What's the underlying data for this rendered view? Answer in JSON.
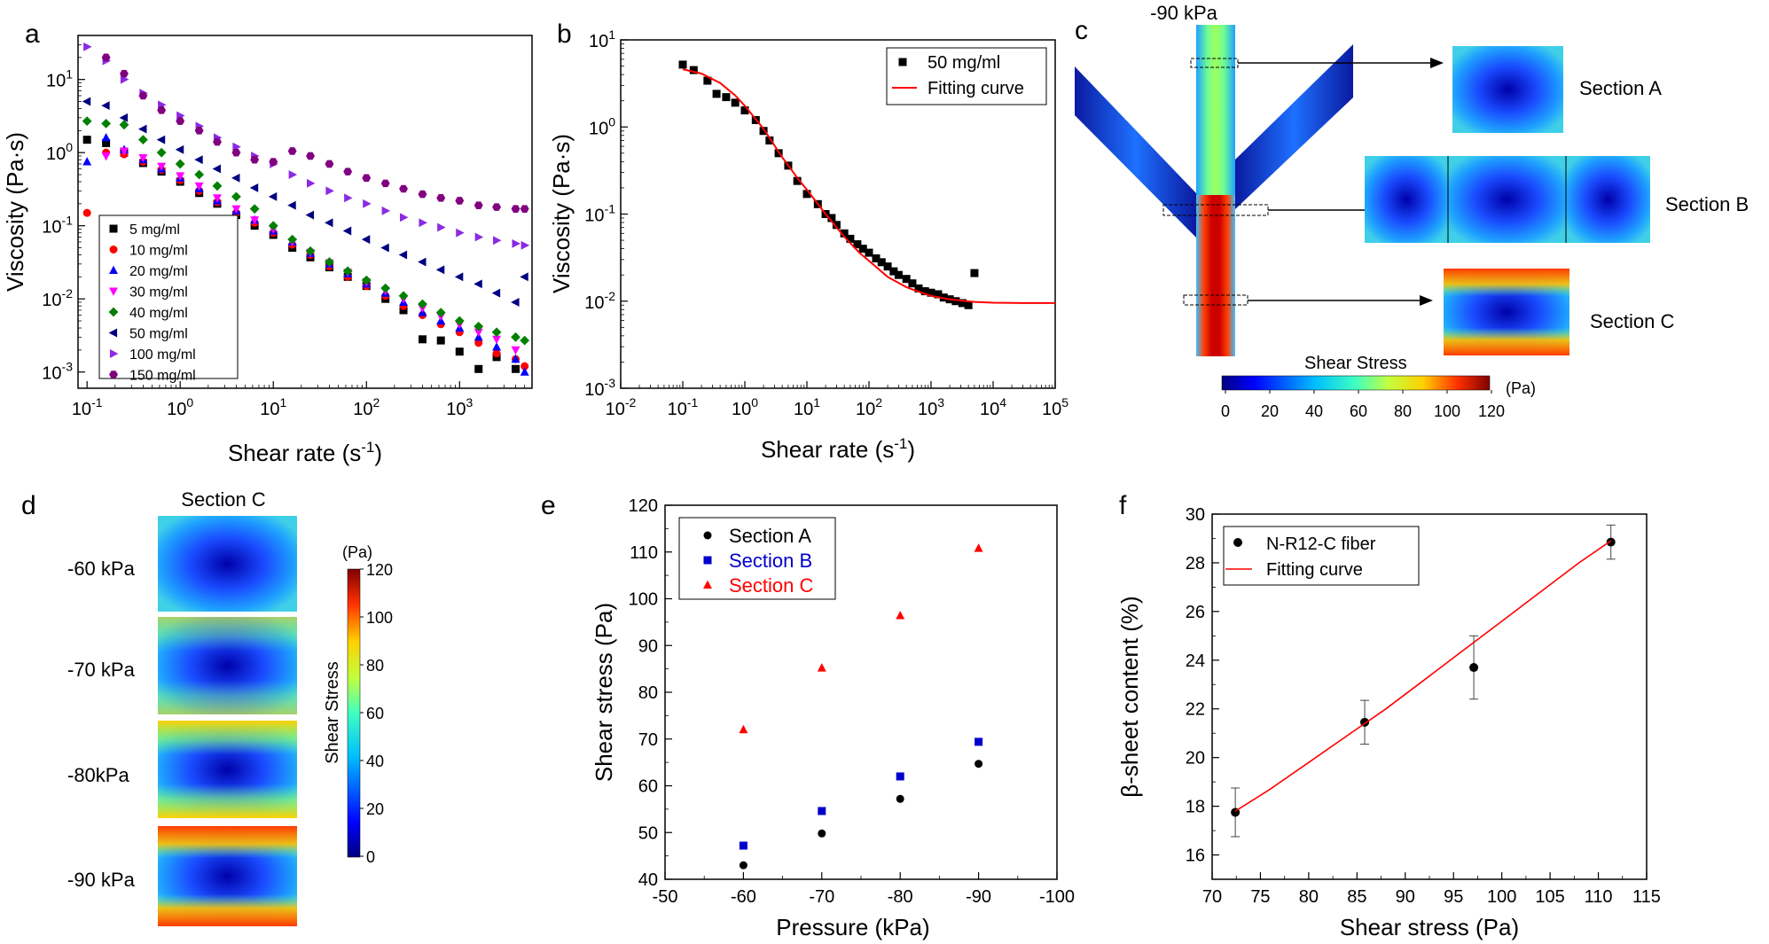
{
  "panel_labels": [
    "a",
    "b",
    "c",
    "d",
    "e",
    "f"
  ],
  "colors": {
    "black": "#000000",
    "red": "#ff0000",
    "blue": "#0000ff",
    "magenta": "#ff00ff",
    "green": "#008000",
    "navy": "#000080",
    "violet": "#8a2be2",
    "purple": "#800080",
    "fit": "#ff0000",
    "secB": "#0000cc"
  },
  "chart_data": [
    {
      "id": "a",
      "type": "scatter",
      "xlabel": "Shear rate (s-1)",
      "ylabel": "Viscosity (Pa·s)",
      "x_scale": "log",
      "y_scale": "log",
      "xlim": [
        0.08,
        6000
      ],
      "ylim": [
        0.0006,
        40
      ],
      "x_ticks": [
        {
          "v": 0.1,
          "b": "10",
          "e": "-1"
        },
        {
          "v": 1,
          "b": "10",
          "e": "0"
        },
        {
          "v": 10,
          "b": "10",
          "e": "1"
        },
        {
          "v": 100,
          "b": "10",
          "e": "2"
        },
        {
          "v": 1000,
          "b": "10",
          "e": "3"
        }
      ],
      "y_ticks": [
        {
          "v": 0.001,
          "b": "10",
          "e": "-3"
        },
        {
          "v": 0.01,
          "b": "10",
          "e": "-2"
        },
        {
          "v": 0.1,
          "b": "10",
          "e": "-1"
        },
        {
          "v": 1,
          "b": "10",
          "e": "0"
        },
        {
          "v": 10,
          "b": "10",
          "e": "1"
        }
      ],
      "legend_position": "bottom-left",
      "series": [
        {
          "name": "5 mg/ml",
          "marker": "square",
          "color": "#000000",
          "x": [
            0.1,
            0.16,
            0.25,
            0.4,
            0.63,
            1,
            1.6,
            2.5,
            4,
            6.3,
            10,
            16,
            25,
            40,
            63,
            100,
            160,
            250,
            400,
            630,
            1000,
            1600,
            2500,
            4000
          ],
          "y": [
            1.5,
            1.35,
            1.0,
            0.72,
            0.55,
            0.4,
            0.28,
            0.2,
            0.14,
            0.1,
            0.075,
            0.05,
            0.037,
            0.027,
            0.02,
            0.015,
            0.01,
            0.007,
            0.0028,
            0.0027,
            0.0019,
            0.0011,
            0.0016,
            0.0011
          ]
        },
        {
          "name": "10 mg/ml",
          "marker": "circle",
          "color": "#ff0000",
          "x": [
            0.1,
            0.16,
            0.25,
            0.4,
            0.63,
            1,
            1.6,
            2.5,
            4,
            6.3,
            10,
            16,
            25,
            40,
            63,
            100,
            160,
            250,
            400,
            630,
            1000,
            1600,
            2500,
            4000,
            5000
          ],
          "y": [
            0.15,
            1.0,
            0.95,
            0.75,
            0.58,
            0.42,
            0.3,
            0.21,
            0.15,
            0.11,
            0.08,
            0.055,
            0.04,
            0.028,
            0.02,
            0.015,
            0.011,
            0.008,
            0.006,
            0.0045,
            0.0035,
            0.0025,
            0.0018,
            0.0015,
            0.0012
          ]
        },
        {
          "name": "20 mg/ml",
          "marker": "triangle-up",
          "color": "#0000ff",
          "x": [
            0.1,
            0.16,
            0.25,
            0.4,
            0.63,
            1,
            1.6,
            2.5,
            4,
            6.3,
            10,
            16,
            25,
            40,
            63,
            100,
            160,
            250,
            400,
            630,
            1000,
            1600,
            2500,
            4000,
            5000
          ],
          "y": [
            0.75,
            1.6,
            1.1,
            0.8,
            0.6,
            0.45,
            0.32,
            0.22,
            0.16,
            0.12,
            0.085,
            0.06,
            0.042,
            0.03,
            0.022,
            0.016,
            0.012,
            0.009,
            0.0065,
            0.005,
            0.004,
            0.003,
            0.0022,
            0.0015,
            0.001
          ]
        },
        {
          "name": "30 mg/ml",
          "marker": "triangle-down",
          "color": "#ff00ff",
          "x": [
            0.16,
            0.25,
            0.4,
            0.63,
            1,
            1.6,
            2.5,
            4,
            6.3,
            10,
            16,
            25,
            40,
            63,
            100,
            160,
            250,
            400,
            630,
            1000,
            1600,
            2500,
            4000
          ],
          "y": [
            0.9,
            1.05,
            0.85,
            0.65,
            0.48,
            0.35,
            0.24,
            0.17,
            0.12,
            0.09,
            0.06,
            0.043,
            0.031,
            0.023,
            0.017,
            0.013,
            0.01,
            0.0075,
            0.0058,
            0.0045,
            0.0035,
            0.0028,
            0.002
          ]
        },
        {
          "name": "40 mg/ml",
          "marker": "diamond",
          "color": "#008000",
          "x": [
            0.1,
            0.16,
            0.25,
            0.4,
            0.63,
            1,
            1.6,
            2.5,
            4,
            6.3,
            10,
            16,
            25,
            40,
            63,
            100,
            160,
            250,
            400,
            630,
            1000,
            1600,
            2500,
            4000,
            5000
          ],
          "y": [
            2.7,
            2.5,
            2.4,
            1.5,
            1.0,
            0.7,
            0.5,
            0.35,
            0.25,
            0.17,
            0.1,
            0.065,
            0.045,
            0.032,
            0.024,
            0.018,
            0.014,
            0.011,
            0.0085,
            0.0065,
            0.005,
            0.0042,
            0.0035,
            0.003,
            0.0027
          ]
        },
        {
          "name": "50 mg/ml",
          "marker": "triangle-left",
          "color": "#000080",
          "x": [
            0.1,
            0.16,
            0.25,
            0.4,
            0.63,
            1,
            1.6,
            2.5,
            4,
            6.3,
            10,
            16,
            25,
            40,
            63,
            100,
            160,
            250,
            400,
            630,
            1000,
            1600,
            2500,
            4000,
            5000
          ],
          "y": [
            5.0,
            4.4,
            3.0,
            2.1,
            1.5,
            1.1,
            0.8,
            0.6,
            0.45,
            0.33,
            0.25,
            0.19,
            0.14,
            0.11,
            0.085,
            0.065,
            0.05,
            0.04,
            0.032,
            0.025,
            0.02,
            0.016,
            0.012,
            0.009,
            0.02
          ]
        },
        {
          "name": "100 mg/ml",
          "marker": "triangle-right",
          "color": "#8a2be2",
          "x": [
            0.1,
            0.16,
            0.25,
            0.4,
            0.63,
            1,
            1.6,
            2.5,
            4,
            6.3,
            10,
            16,
            25,
            40,
            63,
            100,
            160,
            250,
            400,
            630,
            1000,
            1600,
            2500,
            4000,
            5000
          ],
          "y": [
            28,
            18,
            10,
            6.5,
            4.5,
            3.2,
            2.3,
            1.6,
            1.2,
            0.9,
            0.7,
            0.5,
            0.38,
            0.3,
            0.24,
            0.2,
            0.16,
            0.13,
            0.11,
            0.095,
            0.08,
            0.07,
            0.063,
            0.057,
            0.054
          ]
        },
        {
          "name": "150 mg/ml",
          "marker": "hexagon",
          "color": "#800080",
          "x": [
            0.16,
            0.25,
            0.4,
            0.63,
            1,
            1.6,
            2.5,
            4,
            6.3,
            10,
            16,
            25,
            40,
            63,
            100,
            160,
            250,
            400,
            630,
            1000,
            1600,
            2500,
            4000,
            5000
          ],
          "y": [
            20,
            12,
            6,
            3.8,
            2.7,
            2.0,
            1.4,
            1.0,
            0.8,
            0.75,
            1.05,
            0.9,
            0.7,
            0.55,
            0.45,
            0.38,
            0.32,
            0.27,
            0.24,
            0.22,
            0.19,
            0.18,
            0.17,
            0.17
          ]
        }
      ]
    },
    {
      "id": "b",
      "type": "scatter",
      "xlabel": "Shear rate (s-1)",
      "ylabel": "Viscosity (Pa·s)",
      "x_scale": "log",
      "y_scale": "log",
      "xlim": [
        0.01,
        100000
      ],
      "ylim": [
        0.001,
        10
      ],
      "x_ticks": [
        {
          "v": 0.01,
          "b": "10",
          "e": "-2"
        },
        {
          "v": 0.1,
          "b": "10",
          "e": "-1"
        },
        {
          "v": 1,
          "b": "10",
          "e": "0"
        },
        {
          "v": 10,
          "b": "10",
          "e": "1"
        },
        {
          "v": 100,
          "b": "10",
          "e": "2"
        },
        {
          "v": 1000,
          "b": "10",
          "e": "3"
        },
        {
          "v": 10000,
          "b": "10",
          "e": "4"
        },
        {
          "v": 100000,
          "b": "10",
          "e": "5"
        }
      ],
      "y_ticks": [
        {
          "v": 0.001,
          "b": "10",
          "e": "-3"
        },
        {
          "v": 0.01,
          "b": "10",
          "e": "-2"
        },
        {
          "v": 0.1,
          "b": "10",
          "e": "-1"
        },
        {
          "v": 1,
          "b": "10",
          "e": "0"
        },
        {
          "v": 10,
          "b": "10",
          "e": "1"
        }
      ],
      "legend_position": "top-right",
      "series": [
        {
          "name": "50 mg/ml",
          "marker": "square",
          "color": "#000000",
          "x": [
            0.1,
            0.15,
            0.25,
            0.35,
            0.5,
            0.7,
            1.0,
            1.5,
            2.0,
            2.5,
            3.5,
            5,
            7,
            10,
            15,
            20,
            25,
            30,
            40,
            50,
            65,
            80,
            100,
            130,
            160,
            200,
            250,
            300,
            400,
            500,
            630,
            800,
            1000,
            1300,
            1600,
            2000,
            2500,
            3200,
            4000,
            5000
          ],
          "y": [
            5.2,
            4.5,
            3.4,
            2.4,
            2.2,
            1.9,
            1.55,
            1.2,
            0.9,
            0.7,
            0.5,
            0.36,
            0.24,
            0.17,
            0.13,
            0.1,
            0.09,
            0.075,
            0.06,
            0.052,
            0.045,
            0.04,
            0.036,
            0.031,
            0.028,
            0.025,
            0.022,
            0.02,
            0.018,
            0.016,
            0.014,
            0.013,
            0.0125,
            0.012,
            0.011,
            0.0105,
            0.01,
            0.0095,
            0.009,
            0.021
          ]
        },
        {
          "name": "Fitting curve",
          "kind": "line",
          "color": "#ff0000",
          "x": [
            0.1,
            0.2,
            0.4,
            0.7,
            1,
            2,
            4,
            7,
            10,
            20,
            40,
            70,
            100,
            200,
            400,
            700,
            1000,
            2000,
            5000,
            10000,
            30000,
            100000
          ],
          "y": [
            4.6,
            4.1,
            3.2,
            2.3,
            1.75,
            0.95,
            0.45,
            0.26,
            0.19,
            0.1,
            0.055,
            0.036,
            0.029,
            0.019,
            0.0145,
            0.0125,
            0.0115,
            0.0105,
            0.0098,
            0.0096,
            0.0095,
            0.0095
          ]
        }
      ]
    },
    {
      "id": "e",
      "type": "scatter",
      "xlabel": "Pressure (kPa)",
      "ylabel": "Shear stress (Pa)",
      "xlim": [
        -50,
        -100
      ],
      "ylim": [
        40,
        120
      ],
      "x_ticks": [
        -50,
        -60,
        -70,
        -80,
        -90,
        -100
      ],
      "y_ticks": [
        40,
        50,
        60,
        70,
        80,
        90,
        100,
        110,
        120
      ],
      "legend_position": "top-left",
      "series": [
        {
          "name": "Section A",
          "marker": "circle",
          "color": "#000000",
          "x": [
            -60,
            -70,
            -80,
            -90
          ],
          "y": [
            43,
            49.8,
            57.2,
            64.7
          ]
        },
        {
          "name": "Section B",
          "marker": "square",
          "color": "#0000cc",
          "x": [
            -60,
            -70,
            -80,
            -90
          ],
          "y": [
            47.2,
            54.6,
            62.0,
            69.4
          ]
        },
        {
          "name": "Section C",
          "marker": "triangle-up",
          "color": "#ff0000",
          "x": [
            -60,
            -70,
            -80,
            -90
          ],
          "y": [
            72,
            85.2,
            96.4,
            110.8
          ]
        }
      ]
    },
    {
      "id": "f",
      "type": "scatter",
      "xlabel": "Shear stress (Pa)",
      "ylabel": "β-sheet content (%)",
      "xlim": [
        70,
        115
      ],
      "ylim": [
        15,
        30
      ],
      "x_ticks": [
        70,
        75,
        80,
        85,
        90,
        95,
        100,
        105,
        110,
        115
      ],
      "y_ticks": [
        16,
        18,
        20,
        22,
        24,
        26,
        28,
        30
      ],
      "legend_position": "top-left",
      "series": [
        {
          "name": "N-R12-C fiber",
          "marker": "circle",
          "color": "#000000",
          "x": [
            72.4,
            85.8,
            97.1,
            111.3
          ],
          "y": [
            17.75,
            21.45,
            23.7,
            28.85
          ],
          "err": [
            1.0,
            0.9,
            1.3,
            0.7
          ]
        },
        {
          "name": "Fitting curve",
          "kind": "line",
          "color": "#ff0000",
          "x": [
            72.4,
            76,
            80,
            84,
            88,
            92,
            96,
            100,
            104,
            108,
            111.3
          ],
          "y": [
            17.8,
            18.7,
            19.8,
            20.9,
            22.0,
            23.2,
            24.4,
            25.6,
            26.8,
            28.0,
            28.9
          ]
        }
      ]
    }
  ],
  "panel_c": {
    "pressure_label": "-90 kPa",
    "sections": [
      "Section A",
      "Section B",
      "Section C"
    ],
    "colorbar_title": "Shear Stress",
    "colorbar_unit": "(Pa)",
    "colorbar_ticks": [
      "0",
      "20",
      "40",
      "60",
      "80",
      "100",
      "120"
    ]
  },
  "panel_d": {
    "title": "Section C",
    "pressures": [
      "-60 kPa",
      "-70 kPa",
      "-80kPa",
      "-90 kPa"
    ],
    "colorbar_unit": "(Pa)",
    "colorbar_label": "Shear Stress",
    "colorbar_ticks": [
      "0",
      "20",
      "40",
      "60",
      "80",
      "100",
      "120"
    ]
  }
}
